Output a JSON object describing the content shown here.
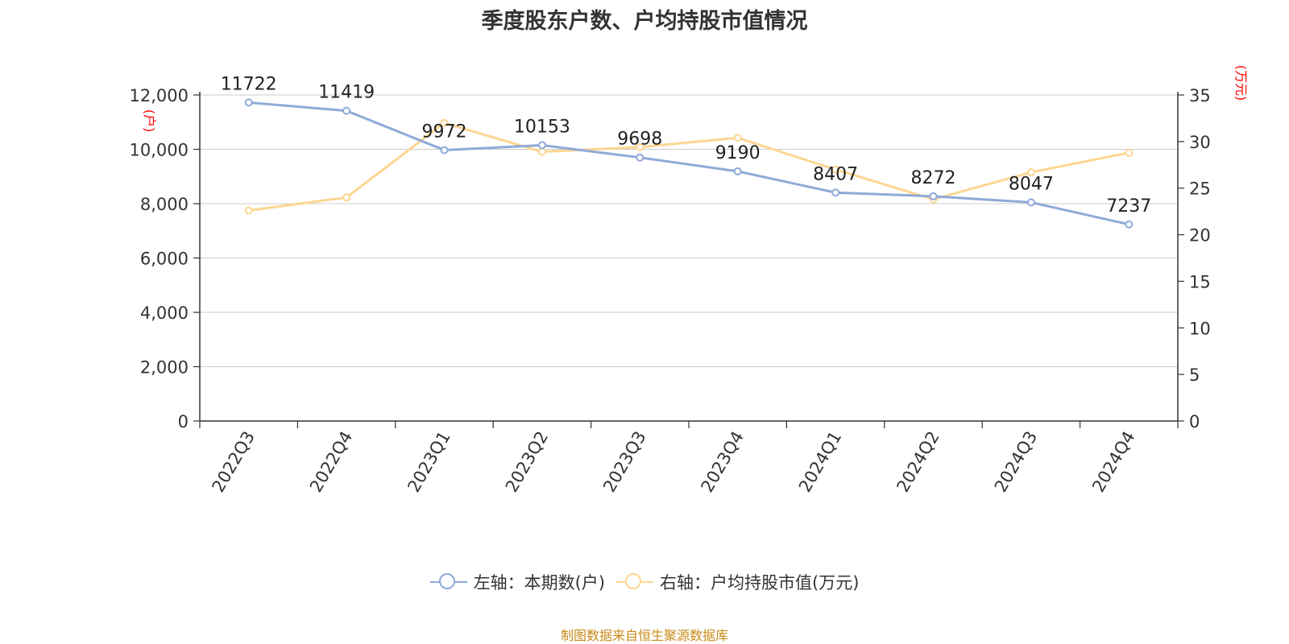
{
  "title": "季度股东户数、户均持股市值情况",
  "source": "制图数据来自恒生聚源数据库",
  "chart_data": {
    "type": "line",
    "categories": [
      "2022Q3",
      "2022Q4",
      "2023Q1",
      "2023Q2",
      "2023Q3",
      "2023Q4",
      "2024Q1",
      "2024Q2",
      "2024Q3",
      "2024Q4"
    ],
    "series": [
      {
        "name": "左轴：本期数(户)",
        "axis": "left",
        "color": "#8eaad8",
        "values": [
          11722,
          11419,
          9972,
          10153,
          9698,
          9190,
          8407,
          8272,
          8047,
          7237
        ],
        "labels": [
          "11722",
          "11419",
          "9972",
          "10153",
          "9698",
          "9190",
          "8407",
          "8272",
          "8047",
          "7237"
        ]
      },
      {
        "name": "右轴：户均持股市值(万元)",
        "axis": "right",
        "color": "#fdd692",
        "values": [
          22.6,
          24.0,
          32.0,
          28.9,
          29.4,
          30.4,
          27.0,
          23.8,
          26.7,
          28.8
        ]
      }
    ],
    "y_left": {
      "unit": "(户)",
      "min": 0,
      "max": 12000,
      "ticks": [
        0,
        2000,
        4000,
        6000,
        8000,
        10000,
        12000
      ],
      "tick_labels": [
        "0",
        "2,000",
        "4,000",
        "6,000",
        "8,000",
        "10,000",
        "12,000"
      ]
    },
    "y_right": {
      "unit": "(万元)",
      "min": 0,
      "max": 35,
      "ticks": [
        0,
        5,
        10,
        15,
        20,
        25,
        30,
        35
      ],
      "tick_labels": [
        "0",
        "5",
        "10",
        "15",
        "20",
        "25",
        "30",
        "35"
      ]
    },
    "grid": true,
    "legend_position": "bottom",
    "unit_color": "#ff0000",
    "gridline_color": "#cccccc"
  }
}
